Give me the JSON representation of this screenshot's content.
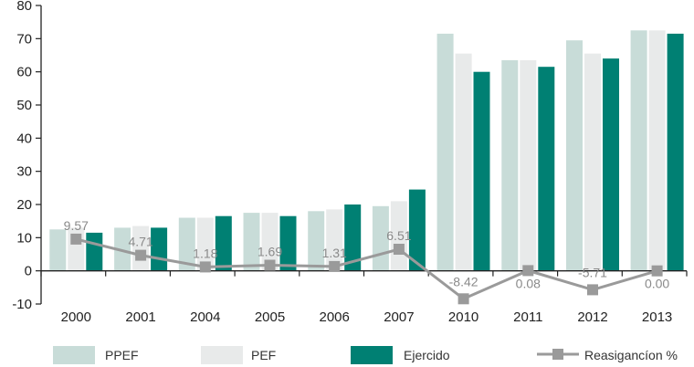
{
  "chart_data": {
    "type": "bar",
    "categories": [
      "2000",
      "2001",
      "2004",
      "2005",
      "2006",
      "2007",
      "2010",
      "2011",
      "2012",
      "2013"
    ],
    "series": [
      {
        "name": "PPEF",
        "kind": "bar",
        "color": "#c8dcd8",
        "values": [
          12.5,
          13.0,
          16.0,
          17.5,
          18.0,
          19.5,
          71.5,
          63.5,
          69.5,
          72.5
        ]
      },
      {
        "name": "PEF",
        "kind": "bar",
        "color": "#e8eaea",
        "values": [
          13.0,
          13.5,
          16.0,
          17.5,
          18.5,
          21.0,
          65.5,
          63.5,
          65.5,
          72.5
        ]
      },
      {
        "name": "Ejercido",
        "kind": "bar",
        "color": "#008073",
        "values": [
          11.5,
          13.0,
          16.5,
          16.5,
          20.0,
          24.5,
          60.0,
          61.5,
          64.0,
          71.5
        ]
      },
      {
        "name": "Reasigancíon %",
        "kind": "line",
        "color": "#9a9a9a",
        "values": [
          9.57,
          4.71,
          1.18,
          1.69,
          1.31,
          6.51,
          -8.42,
          0.08,
          -5.71,
          0.0
        ],
        "labels": [
          "9.57",
          "4.71",
          "1.18",
          "1.69",
          "1.31",
          "6.51",
          "-8.42",
          "0.08",
          "-5.71",
          "0.00"
        ]
      }
    ],
    "yticks": [
      "-10",
      "0",
      "10",
      "20",
      "30",
      "40",
      "50",
      "60",
      "70",
      "80"
    ],
    "ylim": [
      -10,
      80
    ],
    "grid": false,
    "legend": [
      "PPEF",
      "PEF",
      "Ejercido",
      "Reasigancíon %"
    ],
    "legend_position": "bottom"
  }
}
